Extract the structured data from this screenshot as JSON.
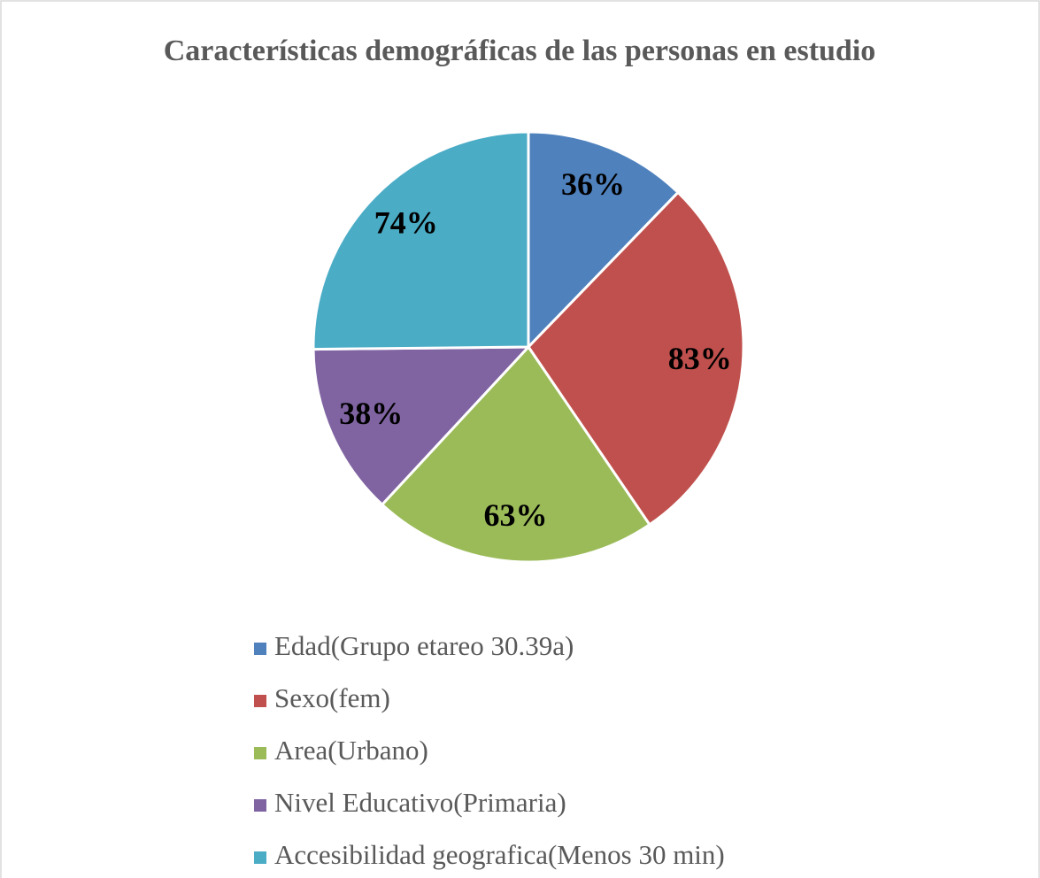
{
  "chart_data": {
    "type": "pie",
    "title": "Características demográficas de las personas en estudio",
    "categories": [
      "Edad(Grupo etareo 30.39a)",
      "Sexo(fem)",
      "Area(Urbano)",
      "Nivel Educativo(Primaria)",
      "Accesibilidad geografica(Menos 30 min)"
    ],
    "values": [
      36,
      83,
      63,
      38,
      74
    ],
    "value_labels": [
      "36%",
      "83%",
      "63%",
      "38%",
      "74%"
    ],
    "colors": [
      "#4f81bd",
      "#c0504d",
      "#9bbb59",
      "#8064a2",
      "#4bacc6"
    ],
    "legend": "bottom"
  }
}
